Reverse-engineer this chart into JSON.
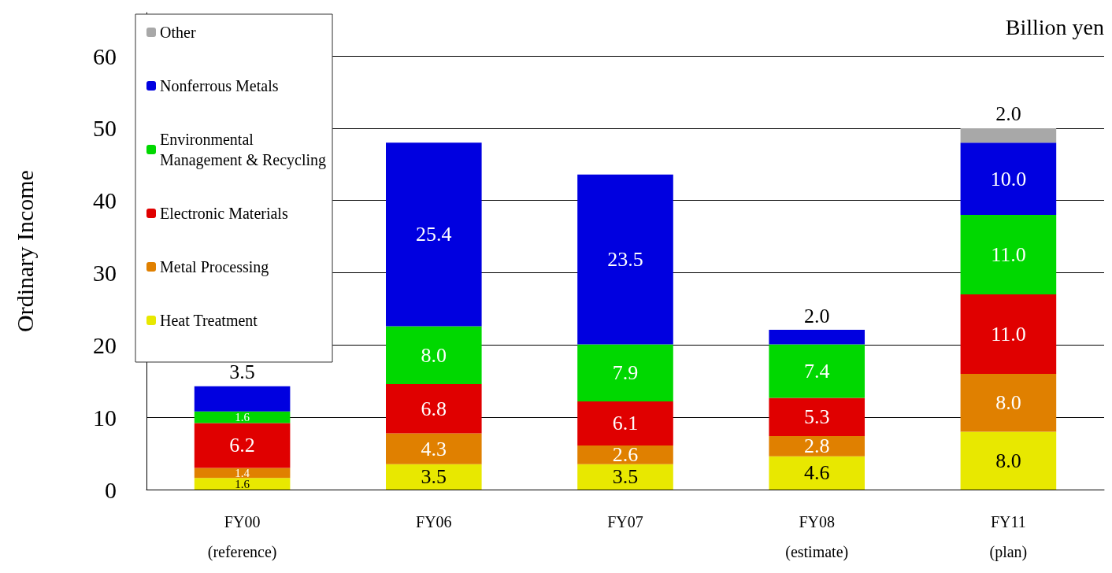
{
  "chart_data": {
    "type": "bar",
    "stacked": true,
    "ylabel": "Ordinary Income",
    "annotations": [
      "Billion yen"
    ],
    "categories": [
      "FY00\n(reference)",
      "FY06",
      "FY07",
      "FY08\n(estimate)",
      "FY11\n(plan)"
    ],
    "series": [
      {
        "name": "Heat Treatment",
        "color": "#e8e800",
        "values": [
          1.6,
          3.5,
          3.5,
          4.6,
          8
        ],
        "value_labels": [
          "1.6",
          "3.5",
          "3.5",
          "4.6",
          "8.0"
        ]
      },
      {
        "name": "Metal Processing",
        "color": "#e08000",
        "values": [
          1.4,
          4.3,
          2.6,
          2.8,
          8
        ],
        "value_labels": [
          "1.4",
          "4.3",
          "2.6",
          "2.8",
          "8.0"
        ]
      },
      {
        "name": "Electronic Materials",
        "color": "#e00000",
        "values": [
          6.2,
          6.8,
          6.1,
          5.3,
          11
        ],
        "value_labels": [
          "6.2",
          "6.8",
          "6.1",
          "5.3",
          "11.0"
        ]
      },
      {
        "name": "Environmental Management & Recycling",
        "color": "#00d800",
        "values": [
          1.6,
          8,
          7.9,
          7.4,
          11
        ],
        "value_labels": [
          "1.6",
          "8.0",
          "7.9",
          "7.4",
          "11.0"
        ]
      },
      {
        "name": "Nonferrous Metals",
        "color": "#0000e0",
        "values": [
          3.5,
          25.4,
          23.5,
          2,
          10
        ],
        "value_labels": [
          "3.5",
          "25.4",
          "23.5",
          "2.0",
          "10.0"
        ]
      },
      {
        "name": "Other",
        "color": "#a8a8a8",
        "values": [
          null,
          null,
          null,
          null,
          2
        ],
        "value_labels": [
          null,
          null,
          null,
          null,
          "2.0"
        ]
      }
    ],
    "ylim": [
      0,
      66
    ],
    "yticks": [
      0,
      10,
      20,
      30,
      40,
      50,
      60
    ],
    "grid": "y",
    "legend": "top left"
  }
}
